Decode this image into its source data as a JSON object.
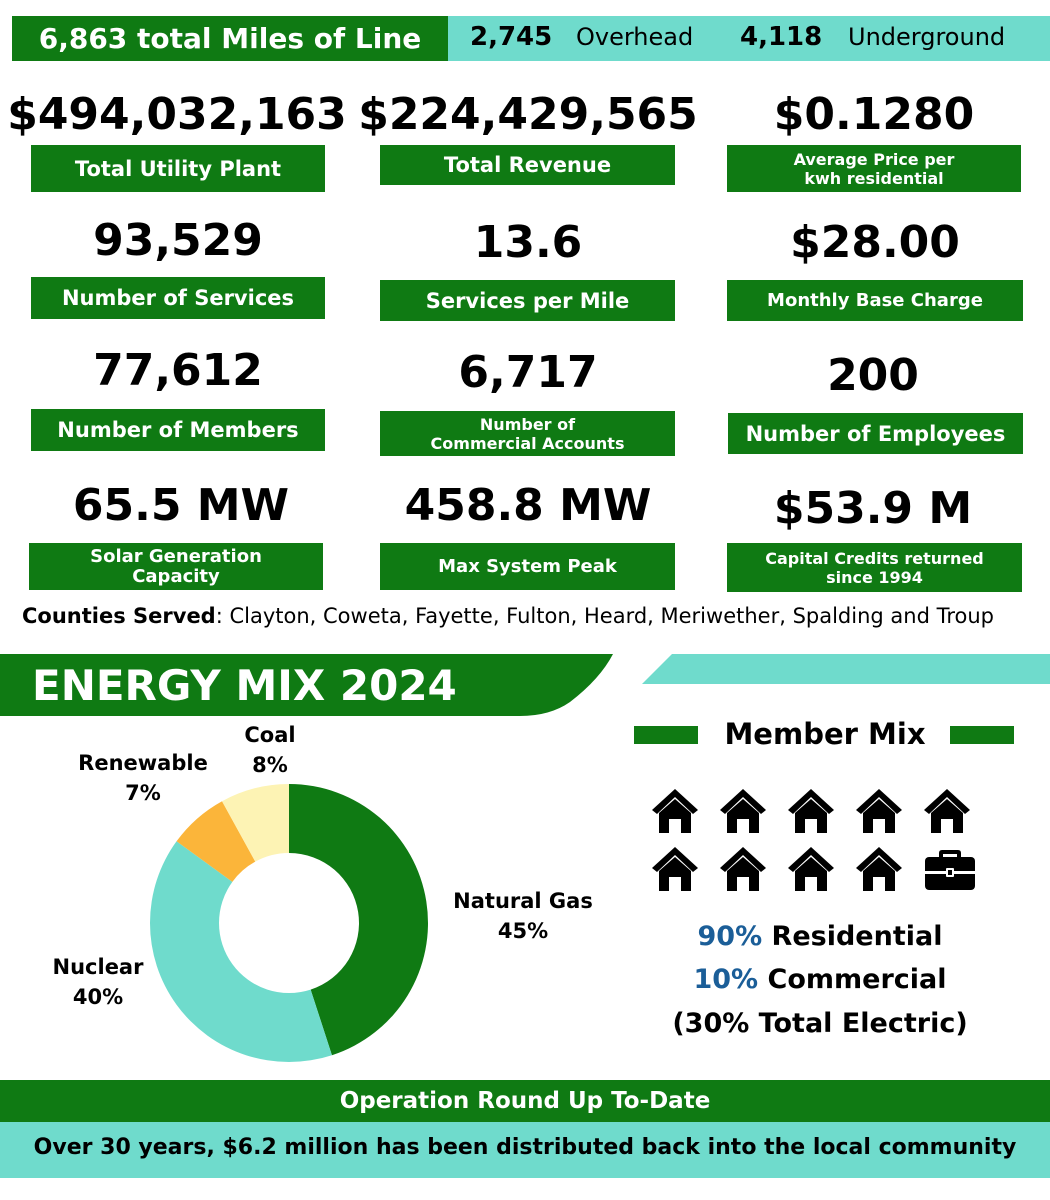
{
  "header": {
    "total_miles": "6,863 total Miles of Line",
    "overhead_value": "2,745",
    "overhead_label": "Overhead",
    "underground_value": "4,118",
    "underground_label": "Underground"
  },
  "stats": {
    "total_utility_plant": {
      "value": "$494,032,163",
      "label": "Total Utility Plant"
    },
    "total_revenue": {
      "value": "$224,429,565",
      "label": "Total Revenue"
    },
    "average_price": {
      "value": "$0.1280",
      "label_line1": "Average Price per",
      "label_line2": "kwh residential"
    },
    "number_of_services": {
      "value": "93,529",
      "label": "Number of Services"
    },
    "services_per_mile": {
      "value": "13.6",
      "label": "Services per Mile"
    },
    "monthly_base_charge": {
      "value": "$28.00",
      "label": "Monthly Base Charge"
    },
    "number_of_members": {
      "value": "77,612",
      "label": "Number of Members"
    },
    "commercial_accounts": {
      "value": "6,717",
      "label_line1": "Number of",
      "label_line2": "Commercial Accounts"
    },
    "number_of_employees": {
      "value": "200",
      "label": "Number of Employees"
    },
    "solar_capacity": {
      "value": "65.5 MW",
      "label_line1": "Solar Generation",
      "label_line2": "Capacity"
    },
    "max_system_peak": {
      "value": "458.8 MW",
      "label": "Max System Peak"
    },
    "capital_credits": {
      "value": "$53.9 M",
      "label_line1": "Capital Credits returned",
      "label_line2": "since 1994"
    }
  },
  "counties": {
    "label": "Counties Served",
    "list": ": Clayton, Coweta, Fayette, Fulton, Heard, Meriwether, Spalding and Troup"
  },
  "energy_mix": {
    "title": "ENERGY MIX 2024"
  },
  "chart_data": {
    "type": "pie",
    "title": "ENERGY MIX 2024",
    "donut": true,
    "slices": [
      {
        "name": "Natural Gas",
        "value": 45,
        "label": "45%",
        "color": "#0f7a13"
      },
      {
        "name": "Nuclear",
        "value": 40,
        "label": "40%",
        "color": "#6fdbcc"
      },
      {
        "name": "Renewable",
        "value": 7,
        "label": "7%",
        "color": "#fbb53a"
      },
      {
        "name": "Coal",
        "value": 8,
        "label": "8%",
        "color": "#fdf3b4"
      }
    ]
  },
  "member_mix": {
    "title": "Member Mix",
    "icons": [
      "house-icon",
      "house-icon",
      "house-icon",
      "house-icon",
      "house-icon",
      "house-icon",
      "house-icon",
      "house-icon",
      "house-icon",
      "briefcase-icon"
    ],
    "residential_pct": "90%",
    "residential_label": " Residential",
    "commercial_pct": "10%",
    "commercial_label": " Commercial",
    "total_electric": "(30% Total Electric)"
  },
  "footer": {
    "round_up_title": "Operation Round Up To-Date",
    "round_up_text": "Over 30 years, $6.2 million has been distributed back into the local community"
  },
  "colors": {
    "green": "#0f7a13",
    "teal": "#6fdbcc",
    "orange": "#fbb53a",
    "cream": "#fdf3b4",
    "blue": "#1b5e98"
  }
}
